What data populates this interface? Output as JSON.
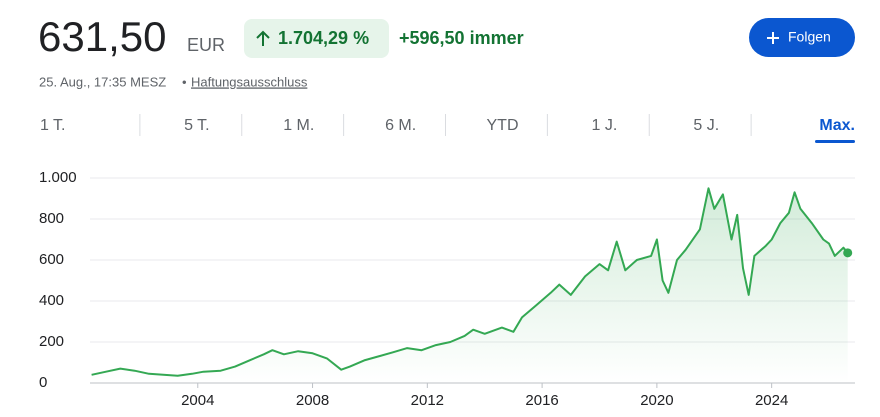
{
  "quote": {
    "price": "631,50",
    "currency": "EUR",
    "change_percent": "1.704,29 %",
    "change_abs": "+596,50 immer",
    "timestamp": "25. Aug., 17:35 MESZ",
    "separator": "•",
    "disclaimer": "Haftungsausschluss",
    "follow_button": "Folgen"
  },
  "tabs": {
    "labels": [
      "1 T.",
      "5 T.",
      "1 M.",
      "6 M.",
      "YTD",
      "1 J.",
      "5 J.",
      "Max."
    ],
    "active": 7
  },
  "chart_data": {
    "type": "line",
    "x": [
      2000.3,
      2000.8,
      2001.3,
      2001.8,
      2002.3,
      2002.8,
      2003.3,
      2003.8,
      2004.2,
      2004.8,
      2005.3,
      2005.8,
      2006.3,
      2006.6,
      2007,
      2007.5,
      2008,
      2008.5,
      2009.0,
      2009.3,
      2009.8,
      2010.3,
      2010.8,
      2011.3,
      2011.8,
      2012.3,
      2012.8,
      2013.3,
      2013.6,
      2014,
      2014.6,
      2015,
      2015.3,
      2015.8,
      2016.3,
      2016.6,
      2017,
      2017.5,
      2018,
      2018.3,
      2018.6,
      2018.9,
      2019.3,
      2019.8,
      2020.0,
      2020.2,
      2020.4,
      2020.7,
      2021.0,
      2021.5,
      2021.8,
      2022.0,
      2022.3,
      2022.6,
      2022.8,
      2023.0,
      2023.2,
      2023.4,
      2023.8,
      2024.0,
      2024.3,
      2024.6,
      2024.8,
      2025.0,
      2025.4,
      2025.8,
      2026.0,
      2026.2,
      2026.5,
      2026.65
    ],
    "series": [
      {
        "color": "#34a853",
        "values": [
          40,
          55,
          70,
          60,
          45,
          40,
          35,
          45,
          55,
          60,
          80,
          110,
          140,
          160,
          140,
          155,
          145,
          120,
          65,
          80,
          110,
          130,
          150,
          170,
          160,
          185,
          200,
          230,
          260,
          240,
          270,
          250,
          320,
          380,
          440,
          480,
          430,
          520,
          580,
          550,
          690,
          550,
          600,
          620,
          700,
          500,
          440,
          600,
          650,
          750,
          950,
          850,
          920,
          700,
          820,
          560,
          430,
          620,
          670,
          700,
          780,
          830,
          930,
          850,
          780,
          700,
          680,
          620,
          660,
          635
        ]
      }
    ],
    "xlim": [
      2000,
      2026.8
    ],
    "xticks": [
      2004,
      2008,
      2012,
      2016,
      2020,
      2024
    ],
    "ylim": [
      0,
      1000
    ],
    "yticks": [
      0,
      200,
      400,
      600,
      800,
      {
        "value": 1000,
        "label": "1.000"
      }
    ],
    "grid": true
  }
}
